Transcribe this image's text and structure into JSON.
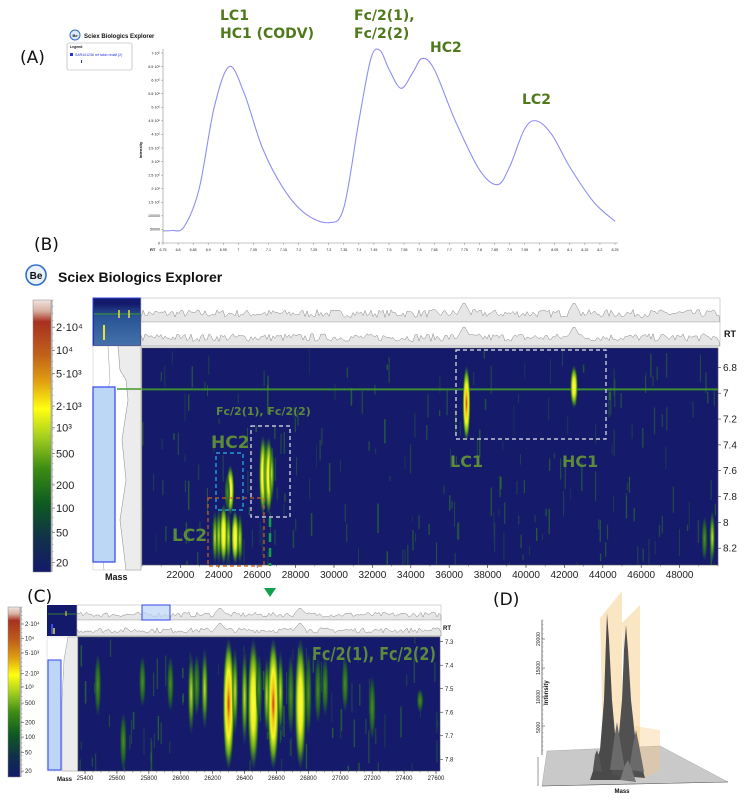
{
  "app": {
    "logo_text": "Be",
    "title": "Sciex Biologics Explorer"
  },
  "panel_labels": {
    "a": "(A)",
    "b": "(B)",
    "c": "(C)",
    "d": "(D)"
  },
  "legend": {
    "title": "Legend",
    "entry": "SAR441236 ref fabio redall (2)",
    "entry_color": "#2233dd"
  },
  "colors": {
    "curve": "#8f8ff0",
    "heatmap_bg": "#151a6b",
    "annotation": "#4e7a1c",
    "rt_line": "#3f9a2a",
    "box_white": "#e8e8e8",
    "box_cyan": "#29b6e8",
    "box_orange": "#c8641e",
    "selection": "#6f9fe8",
    "marker": "#13a04a"
  },
  "colorbar": {
    "labels": [
      "2·10⁴",
      "10⁴",
      "5·10³",
      "2·10³",
      "10³",
      "500",
      "200",
      "100",
      "50",
      "20"
    ]
  },
  "chart_data": [
    {
      "id": "A",
      "type": "line",
      "title": "",
      "xlabel": "RT",
      "ylabel": "Intensity",
      "xlim": [
        6.75,
        8.25
      ],
      "ylim": [
        0,
        700000
      ],
      "x_ticks": [
        "6.75",
        "6.8",
        "6.85",
        "6.9",
        "6.95",
        "7",
        "7.05",
        "7.1",
        "7.15",
        "7.2",
        "7.25",
        "7.3",
        "7.35",
        "7.4",
        "7.45",
        "7.5",
        "7.55",
        "7.6",
        "7.65",
        "7.7",
        "7.75",
        "7.8",
        "7.85",
        "7.9",
        "7.95",
        "8",
        "8.05",
        "8.1",
        "8.15",
        "8.2",
        "8.25"
      ],
      "y_ticks": [
        {
          "v": 0,
          "label": "0"
        },
        {
          "v": 50000,
          "label": "50000"
        },
        {
          "v": 100000,
          "label": "100000"
        },
        {
          "v": 150000,
          "label": "1.5·10⁵"
        },
        {
          "v": 200000,
          "label": "2·10⁵"
        },
        {
          "v": 250000,
          "label": "2.5·10⁵"
        },
        {
          "v": 300000,
          "label": "3·10⁵"
        },
        {
          "v": 350000,
          "label": "3.5·10⁵"
        },
        {
          "v": 400000,
          "label": "4·10⁵"
        },
        {
          "v": 450000,
          "label": "4.5·10⁵"
        },
        {
          "v": 500000,
          "label": "5·10⁵"
        },
        {
          "v": 550000,
          "label": "5.5·10⁵"
        },
        {
          "v": 600000,
          "label": "6·10⁵"
        },
        {
          "v": 650000,
          "label": "6.5·10⁵"
        },
        {
          "v": 700000,
          "label": "7·10⁵"
        }
      ],
      "x": [
        6.75,
        6.78,
        6.82,
        6.87,
        6.92,
        6.97,
        7.02,
        7.08,
        7.15,
        7.22,
        7.3,
        7.35,
        7.4,
        7.44,
        7.47,
        7.5,
        7.54,
        7.58,
        7.61,
        7.65,
        7.72,
        7.8,
        7.86,
        7.9,
        7.95,
        7.99,
        8.04,
        8.1,
        8.18,
        8.25
      ],
      "y": [
        45000,
        46000,
        60000,
        200000,
        500000,
        650000,
        550000,
        350000,
        200000,
        110000,
        75000,
        130000,
        450000,
        680000,
        710000,
        640000,
        570000,
        630000,
        680000,
        640000,
        450000,
        270000,
        215000,
        280000,
        420000,
        450000,
        400000,
        280000,
        150000,
        80000
      ],
      "annotations": [
        {
          "lines": [
            "LC1",
            "HC1 (CODV)"
          ],
          "x": 6.97
        },
        {
          "lines": [
            "Fc/2(1),",
            "Fc/2(2)"
          ],
          "x": 7.47
        },
        {
          "lines": [
            "HC2"
          ],
          "x": 7.61
        },
        {
          "lines": [
            "LC2"
          ],
          "x": 7.99
        }
      ]
    },
    {
      "id": "B",
      "type": "heatmap",
      "xlabel": "Mass",
      "ylabel": "RT",
      "xlim": [
        20000,
        50000
      ],
      "ylim": [
        6.65,
        8.33
      ],
      "x_ticks": [
        "22000",
        "24000",
        "26000",
        "28000",
        "30000",
        "32000",
        "34000",
        "36000",
        "38000",
        "40000",
        "42000",
        "44000",
        "46000",
        "48000"
      ],
      "y_ticks": [
        "6.8",
        "7",
        "7.2",
        "7.4",
        "7.6",
        "7.8",
        "8",
        "8.2"
      ],
      "rt_marker": 6.97,
      "spots": [
        {
          "mass": 36900,
          "rt": [
            6.78,
            7.38
          ],
          "intensity": 20000
        },
        {
          "mass": 42500,
          "rt": [
            6.78,
            7.12
          ],
          "intensity": 5000
        },
        {
          "mass": 24600,
          "rt": [
            7.55,
            7.95
          ],
          "intensity": 5000
        },
        {
          "mass": 24450,
          "rt": [
            7.62,
            7.92
          ],
          "intensity": 800
        },
        {
          "mass": 26300,
          "rt": [
            7.32,
            7.95
          ],
          "intensity": 8000
        },
        {
          "mass": 26450,
          "rt": [
            7.35,
            7.9
          ],
          "intensity": 3000
        },
        {
          "mass": 26600,
          "rt": [
            7.33,
            7.95
          ],
          "intensity": 8000
        },
        {
          "mass": 26750,
          "rt": [
            7.4,
            7.85
          ],
          "intensity": 2000
        },
        {
          "mass": 23800,
          "rt": [
            7.9,
            8.33
          ],
          "intensity": 1000
        },
        {
          "mass": 24000,
          "rt": [
            7.88,
            8.33
          ],
          "intensity": 2000
        },
        {
          "mass": 24250,
          "rt": [
            7.85,
            8.33
          ],
          "intensity": 5000
        },
        {
          "mass": 24500,
          "rt": [
            7.9,
            8.33
          ],
          "intensity": 3000
        },
        {
          "mass": 24850,
          "rt": [
            7.9,
            8.33
          ],
          "intensity": 5000
        },
        {
          "mass": 25100,
          "rt": [
            7.92,
            8.33
          ],
          "intensity": 1500
        },
        {
          "mass": 49700,
          "rt": [
            7.9,
            8.33
          ],
          "intensity": 3000
        },
        {
          "mass": 49300,
          "rt": [
            7.95,
            8.3
          ],
          "intensity": 600
        }
      ],
      "annotations": [
        "Fc/2(1), Fc/2(2)",
        "HC2",
        "LC2",
        "LC1",
        "HC1"
      ]
    },
    {
      "id": "C",
      "type": "heatmap",
      "xlabel": "Mass",
      "ylabel": "RT",
      "xlim": [
        25356,
        27625
      ],
      "ylim": [
        7.28,
        7.85
      ],
      "x_ticks": [
        "25400",
        "25600",
        "25800",
        "26000",
        "26200",
        "26400",
        "26600",
        "26800",
        "27000",
        "27200",
        "27400",
        "27600"
      ],
      "y_ticks": [
        "7.3",
        "7.4",
        "7.5",
        "7.6",
        "7.7",
        "7.8"
      ],
      "spots": [
        {
          "mass": 25480,
          "rt": [
            7.35,
            7.62
          ],
          "intensity": 400
        },
        {
          "mass": 25640,
          "rt": [
            7.6,
            7.85
          ],
          "intensity": 250
        },
        {
          "mass": 25760,
          "rt": [
            7.36,
            7.58
          ],
          "intensity": 500
        },
        {
          "mass": 25935,
          "rt": [
            7.36,
            7.6
          ],
          "intensity": 700
        },
        {
          "mass": 26065,
          "rt": [
            7.34,
            7.7
          ],
          "intensity": 1500
        },
        {
          "mass": 26100,
          "rt": [
            7.35,
            7.62
          ],
          "intensity": 900
        },
        {
          "mass": 26150,
          "rt": [
            7.32,
            7.68
          ],
          "intensity": 2500
        },
        {
          "mass": 26300,
          "rt": [
            7.28,
            7.85
          ],
          "intensity": 20000
        },
        {
          "mass": 26340,
          "rt": [
            7.32,
            7.7
          ],
          "intensity": 1500
        },
        {
          "mass": 26400,
          "rt": [
            7.32,
            7.75
          ],
          "intensity": 1500
        },
        {
          "mass": 26455,
          "rt": [
            7.28,
            7.85
          ],
          "intensity": 8000
        },
        {
          "mass": 26490,
          "rt": [
            7.35,
            7.65
          ],
          "intensity": 900
        },
        {
          "mass": 26540,
          "rt": [
            7.36,
            7.7
          ],
          "intensity": 1000
        },
        {
          "mass": 26580,
          "rt": [
            7.28,
            7.85
          ],
          "intensity": 20000
        },
        {
          "mass": 26625,
          "rt": [
            7.33,
            7.7
          ],
          "intensity": 1500
        },
        {
          "mass": 26690,
          "rt": [
            7.35,
            7.7
          ],
          "intensity": 900
        },
        {
          "mass": 26750,
          "rt": [
            7.28,
            7.85
          ],
          "intensity": 8000
        },
        {
          "mass": 26800,
          "rt": [
            7.34,
            7.7
          ],
          "intensity": 900
        },
        {
          "mass": 26860,
          "rt": [
            7.36,
            7.65
          ],
          "intensity": 800
        },
        {
          "mass": 26905,
          "rt": [
            7.36,
            7.62
          ],
          "intensity": 700
        },
        {
          "mass": 27030,
          "rt": [
            7.36,
            7.6
          ],
          "intensity": 400
        },
        {
          "mass": 27200,
          "rt": [
            7.44,
            7.72
          ],
          "intensity": 400
        },
        {
          "mass": 27500,
          "rt": [
            7.5,
            7.6
          ],
          "intensity": 300
        }
      ],
      "annotations": [
        "Fc/2(1), Fc/2(2)"
      ]
    },
    {
      "id": "D",
      "type": "surface3d",
      "zlabel": "Intensity",
      "xlabel": "Mass",
      "z_ticks": [
        "5000",
        "10000",
        "15000",
        "20000"
      ],
      "zlim": [
        0,
        25000
      ],
      "peaks": [
        {
          "label": "Fc/2(1)",
          "intensity": 22000
        },
        {
          "label": "Fc/2(2)",
          "intensity": 19500
        }
      ]
    }
  ]
}
